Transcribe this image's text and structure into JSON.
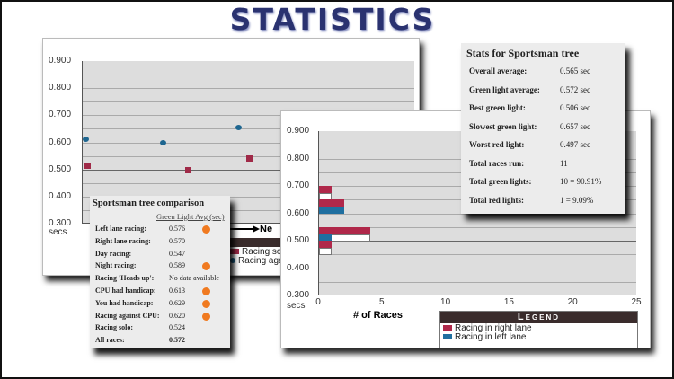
{
  "title": "STATISTICS",
  "colors": {
    "right": "#b0284a",
    "left": "#1f6fa0",
    "solo": "#a02a48",
    "cpu": "#1e6690",
    "dot": "#f07a20"
  },
  "back_chart": {
    "type": "scatter",
    "y_ticks": [
      "0.900",
      "0.800",
      "0.700",
      "0.600",
      "0.500",
      "0.400",
      "0.300"
    ],
    "y_unit": "secs",
    "ylim": [
      0.3,
      0.9
    ],
    "series": [
      {
        "name": "Racing solo",
        "values": [
          0.513,
          0.497,
          0.54,
          0.505
        ]
      },
      {
        "name": "Racing against CPU",
        "values": [
          0.61,
          0.6,
          0.655
        ]
      }
    ],
    "arrow_label": "Ne"
  },
  "front_chart": {
    "type": "bar",
    "y_ticks": [
      "0.900",
      "0.800",
      "0.700",
      "0.600",
      "0.500",
      "0.400",
      "0.300"
    ],
    "y_unit": "secs",
    "x_ticks": [
      "0",
      "5",
      "10",
      "15",
      "20",
      "25"
    ],
    "xlabel": "# of Races",
    "xlim": [
      0,
      25
    ],
    "bins": [
      0.65,
      0.6,
      0.5,
      0.45
    ],
    "series": [
      {
        "name": "Racing in right lane",
        "values": [
          1,
          2,
          4,
          1
        ]
      },
      {
        "name": "Racing in left lane",
        "values": [
          0,
          2,
          1,
          0
        ]
      }
    ],
    "outline_values": [
      1,
      2,
      4,
      1
    ],
    "legend_title": "Legend"
  },
  "stats": {
    "title": "Stats for Sportsman tree",
    "rows": [
      {
        "label": "Overall average:",
        "value": "0.565 sec"
      },
      {
        "label": "Green light average:",
        "value": "0.572 sec"
      },
      {
        "label": "Best green light:",
        "value": "0.506 sec"
      },
      {
        "label": "Slowest green light:",
        "value": "0.657 sec"
      },
      {
        "label": "Worst red light:",
        "value": "0.497 sec"
      },
      {
        "label": "Total races run:",
        "value": "11"
      },
      {
        "label": "Total green lights:",
        "value": "10 = 90.91%"
      },
      {
        "label": "Total red lights:",
        "value": "1 = 9.09%"
      }
    ]
  },
  "comparison": {
    "title": "Sportsman tree comparison",
    "column": "Green Light Avg (sec)",
    "rows": [
      {
        "label": "Left lane racing:",
        "value": "0.576",
        "dot": true
      },
      {
        "label": "Right lane racing:",
        "value": "0.570",
        "dot": false
      },
      {
        "label": "Day racing:",
        "value": "0.547",
        "dot": false
      },
      {
        "label": "Night racing:",
        "value": "0.589",
        "dot": true
      },
      {
        "label": "Racing 'Heads up':",
        "value": "No data available",
        "dot": false
      },
      {
        "label": "CPU had handicap:",
        "value": "0.613",
        "dot": true
      },
      {
        "label": "You had handicap:",
        "value": "0.629",
        "dot": true
      },
      {
        "label": "Racing against CPU:",
        "value": "0.620",
        "dot": true
      },
      {
        "label": "Racing solo:",
        "value": "0.524",
        "dot": false
      },
      {
        "label": "All races:",
        "value": "0.572",
        "dot": false
      }
    ]
  }
}
